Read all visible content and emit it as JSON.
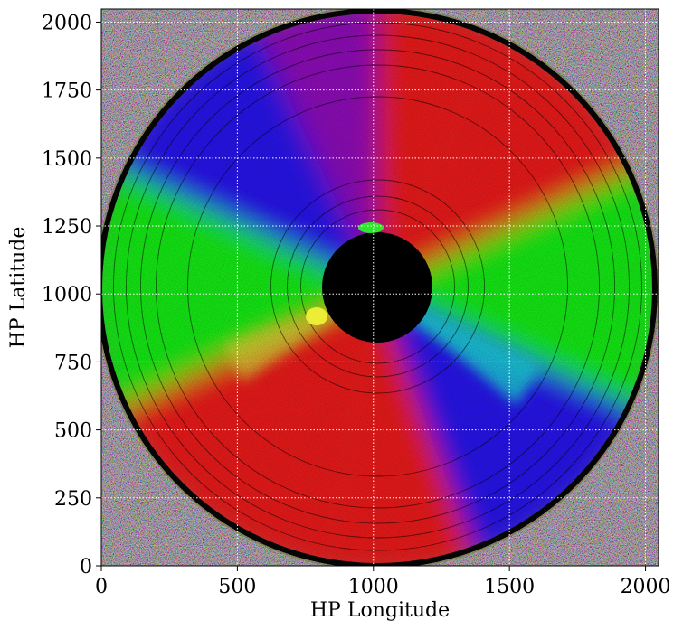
{
  "figure": {
    "xlabel": "HP Longitude",
    "ylabel": "HP Latitude",
    "xlim": [
      0,
      2048
    ],
    "ylim": [
      0,
      2048
    ],
    "x_ticks": [
      0,
      500,
      1000,
      1500,
      2000
    ],
    "y_ticks": [
      0,
      250,
      500,
      750,
      1000,
      1250,
      1500,
      1750,
      2000
    ],
    "x_tick_labels": [
      "0",
      "500",
      "1000",
      "1500",
      "2000"
    ],
    "y_tick_labels": [
      "0",
      "250",
      "500",
      "750",
      "1000",
      "1250",
      "1500",
      "1750",
      "2000"
    ],
    "grid": true,
    "grid_style": "dotted white",
    "colors": {
      "red": "#ff1a1a",
      "green": "#19ff19",
      "blue": "#2a14ff",
      "occulter": "#000000",
      "background_noise": "#1a1a1a"
    }
  }
}
